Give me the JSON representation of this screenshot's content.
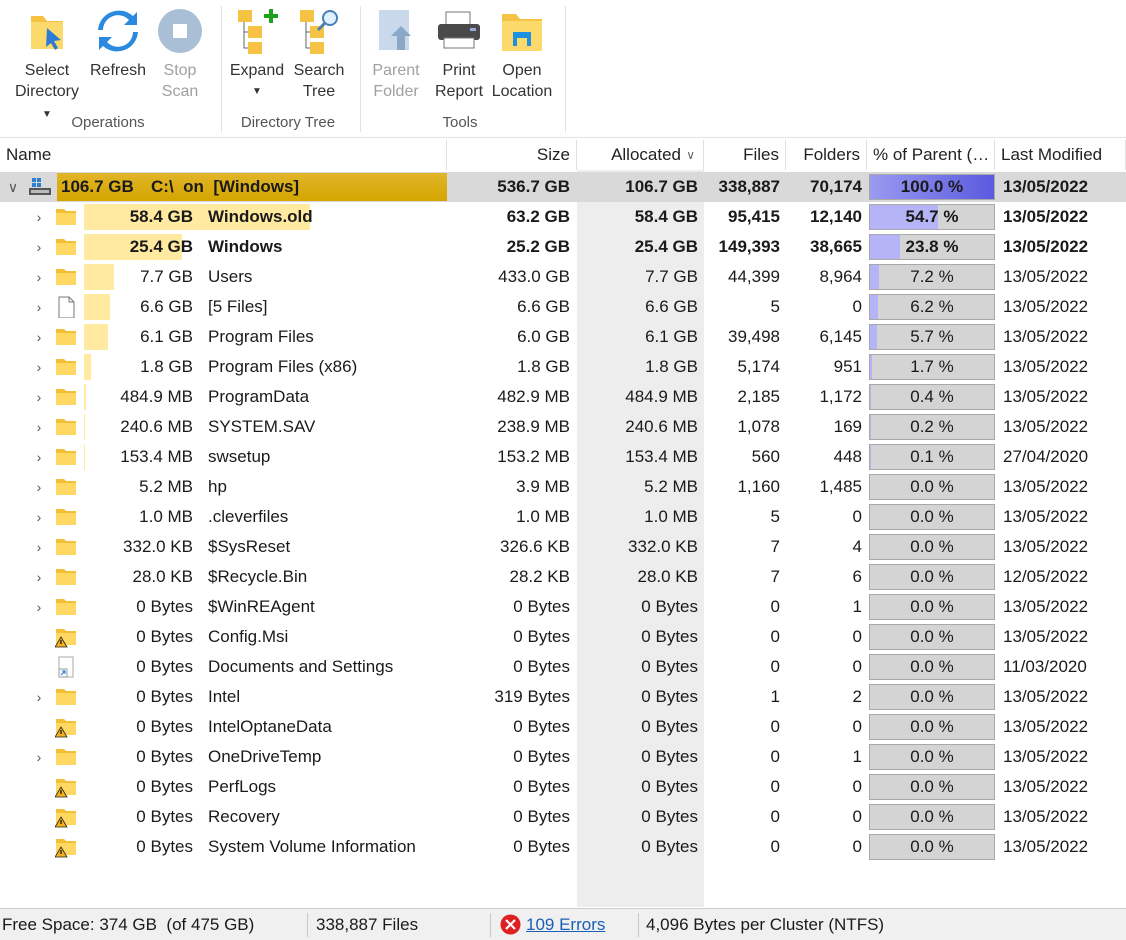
{
  "toolbar": {
    "groups": [
      {
        "title": "Operations",
        "buttons": [
          {
            "label": [
              "Select",
              "Directory"
            ]
          },
          {
            "label": [
              "Refresh"
            ]
          },
          {
            "label": [
              "Stop",
              "Scan"
            ]
          }
        ]
      },
      {
        "title": "Directory Tree",
        "buttons": [
          {
            "label": [
              "Expand"
            ]
          },
          {
            "label": [
              "Search",
              "Tree"
            ]
          }
        ]
      },
      {
        "title": "Tools",
        "buttons": [
          {
            "label": [
              "Parent",
              "Folder"
            ]
          },
          {
            "label": [
              "Print",
              "Report"
            ]
          },
          {
            "label": [
              "Open",
              "Location"
            ]
          }
        ]
      }
    ]
  },
  "table": {
    "columns": [
      "Name",
      "Size",
      "Allocated",
      "Files",
      "Folders",
      "% of Parent (…",
      "Last Modified"
    ],
    "root": {
      "size_label": "106.7 GB",
      "name": "C:\\  on  [Windows]",
      "size": "536.7 GB",
      "allocated": "106.7 GB",
      "files": "338,887",
      "folders": "70,174",
      "percent": 100,
      "percent_label": "100.0 %",
      "modified": "13/05/2022"
    },
    "rows": [
      {
        "size_label": "58.4 GB",
        "name": "Windows.old",
        "size": "63.2 GB",
        "allocated": "58.4 GB",
        "files": "95,415",
        "folders": "12,140",
        "percent": 54.7,
        "percent_label": "54.7 %",
        "modified": "13/05/2022",
        "icon": "folder",
        "expandable": true,
        "bold": true
      },
      {
        "size_label": "25.4 GB",
        "name": "Windows",
        "size": "25.2 GB",
        "allocated": "25.4 GB",
        "files": "149,393",
        "folders": "38,665",
        "percent": 23.8,
        "percent_label": "23.8 %",
        "modified": "13/05/2022",
        "icon": "folder",
        "expandable": true,
        "bold": true
      },
      {
        "size_label": "7.7 GB",
        "name": "Users",
        "size": "433.0 GB",
        "allocated": "7.7 GB",
        "files": "44,399",
        "folders": "8,964",
        "percent": 7.2,
        "percent_label": "7.2 %",
        "modified": "13/05/2022",
        "icon": "folder",
        "expandable": true,
        "bold": false
      },
      {
        "size_label": "6.6 GB",
        "name": "[5 Files]",
        "size": "6.6 GB",
        "allocated": "6.6 GB",
        "files": "5",
        "folders": "0",
        "percent": 6.2,
        "percent_label": "6.2 %",
        "modified": "13/05/2022",
        "icon": "file",
        "expandable": true,
        "bold": false
      },
      {
        "size_label": "6.1 GB",
        "name": "Program Files",
        "size": "6.0 GB",
        "allocated": "6.1 GB",
        "files": "39,498",
        "folders": "6,145",
        "percent": 5.7,
        "percent_label": "5.7 %",
        "modified": "13/05/2022",
        "icon": "folder",
        "expandable": true,
        "bold": false
      },
      {
        "size_label": "1.8 GB",
        "name": "Program Files (x86)",
        "size": "1.8 GB",
        "allocated": "1.8 GB",
        "files": "5,174",
        "folders": "951",
        "percent": 1.7,
        "percent_label": "1.7 %",
        "modified": "13/05/2022",
        "icon": "folder",
        "expandable": true,
        "bold": false
      },
      {
        "size_label": "484.9 MB",
        "name": "ProgramData",
        "size": "482.9 MB",
        "allocated": "484.9 MB",
        "files": "2,185",
        "folders": "1,172",
        "percent": 0.4,
        "percent_label": "0.4 %",
        "modified": "13/05/2022",
        "icon": "folder",
        "expandable": true,
        "bold": false
      },
      {
        "size_label": "240.6 MB",
        "name": "SYSTEM.SAV",
        "size": "238.9 MB",
        "allocated": "240.6 MB",
        "files": "1,078",
        "folders": "169",
        "percent": 0.2,
        "percent_label": "0.2 %",
        "modified": "13/05/2022",
        "icon": "folder",
        "expandable": true,
        "bold": false
      },
      {
        "size_label": "153.4 MB",
        "name": "swsetup",
        "size": "153.2 MB",
        "allocated": "153.4 MB",
        "files": "560",
        "folders": "448",
        "percent": 0.1,
        "percent_label": "0.1 %",
        "modified": "27/04/2020",
        "icon": "folder",
        "expandable": true,
        "bold": false
      },
      {
        "size_label": "5.2 MB",
        "name": "hp",
        "size": "3.9 MB",
        "allocated": "5.2 MB",
        "files": "1,160",
        "folders": "1,485",
        "percent": 0.0,
        "percent_label": "0.0 %",
        "modified": "13/05/2022",
        "icon": "folder",
        "expandable": true,
        "bold": false
      },
      {
        "size_label": "1.0 MB",
        "name": ".cleverfiles",
        "size": "1.0 MB",
        "allocated": "1.0 MB",
        "files": "5",
        "folders": "0",
        "percent": 0.0,
        "percent_label": "0.0 %",
        "modified": "13/05/2022",
        "icon": "folder",
        "expandable": true,
        "bold": false
      },
      {
        "size_label": "332.0 KB",
        "name": "$SysReset",
        "size": "326.6 KB",
        "allocated": "332.0 KB",
        "files": "7",
        "folders": "4",
        "percent": 0.0,
        "percent_label": "0.0 %",
        "modified": "13/05/2022",
        "icon": "folder",
        "expandable": true,
        "bold": false
      },
      {
        "size_label": "28.0 KB",
        "name": "$Recycle.Bin",
        "size": "28.2 KB",
        "allocated": "28.0 KB",
        "files": "7",
        "folders": "6",
        "percent": 0.0,
        "percent_label": "0.0 %",
        "modified": "12/05/2022",
        "icon": "folder",
        "expandable": true,
        "bold": false
      },
      {
        "size_label": "0 Bytes",
        "name": "$WinREAgent",
        "size": "0 Bytes",
        "allocated": "0 Bytes",
        "files": "0",
        "folders": "1",
        "percent": 0.0,
        "percent_label": "0.0 %",
        "modified": "13/05/2022",
        "icon": "folder",
        "expandable": true,
        "bold": false
      },
      {
        "size_label": "0 Bytes",
        "name": "Config.Msi",
        "size": "0 Bytes",
        "allocated": "0 Bytes",
        "files": "0",
        "folders": "0",
        "percent": 0.0,
        "percent_label": "0.0 %",
        "modified": "13/05/2022",
        "icon": "warning",
        "expandable": false,
        "bold": false
      },
      {
        "size_label": "0 Bytes",
        "name": "Documents and Settings",
        "size": "0 Bytes",
        "allocated": "0 Bytes",
        "files": "0",
        "folders": "0",
        "percent": 0.0,
        "percent_label": "0.0 %",
        "modified": "11/03/2020",
        "icon": "shortcut",
        "expandable": false,
        "bold": false
      },
      {
        "size_label": "0 Bytes",
        "name": "Intel",
        "size": "319 Bytes",
        "allocated": "0 Bytes",
        "files": "1",
        "folders": "2",
        "percent": 0.0,
        "percent_label": "0.0 %",
        "modified": "13/05/2022",
        "icon": "folder",
        "expandable": true,
        "bold": false
      },
      {
        "size_label": "0 Bytes",
        "name": "IntelOptaneData",
        "size": "0 Bytes",
        "allocated": "0 Bytes",
        "files": "0",
        "folders": "0",
        "percent": 0.0,
        "percent_label": "0.0 %",
        "modified": "13/05/2022",
        "icon": "warning",
        "expandable": false,
        "bold": false
      },
      {
        "size_label": "0 Bytes",
        "name": "OneDriveTemp",
        "size": "0 Bytes",
        "allocated": "0 Bytes",
        "files": "0",
        "folders": "1",
        "percent": 0.0,
        "percent_label": "0.0 %",
        "modified": "13/05/2022",
        "icon": "folder",
        "expandable": true,
        "bold": false
      },
      {
        "size_label": "0 Bytes",
        "name": "PerfLogs",
        "size": "0 Bytes",
        "allocated": "0 Bytes",
        "files": "0",
        "folders": "0",
        "percent": 0.0,
        "percent_label": "0.0 %",
        "modified": "13/05/2022",
        "icon": "warning",
        "expandable": false,
        "bold": false
      },
      {
        "size_label": "0 Bytes",
        "name": "Recovery",
        "size": "0 Bytes",
        "allocated": "0 Bytes",
        "files": "0",
        "folders": "0",
        "percent": 0.0,
        "percent_label": "0.0 %",
        "modified": "13/05/2022",
        "icon": "warning",
        "expandable": false,
        "bold": false
      },
      {
        "size_label": "0 Bytes",
        "name": "System Volume Information",
        "size": "0 Bytes",
        "allocated": "0 Bytes",
        "files": "0",
        "folders": "0",
        "percent": 0.0,
        "percent_label": "0.0 %",
        "modified": "13/05/2022",
        "icon": "warning",
        "expandable": false,
        "bold": false
      }
    ]
  },
  "status": {
    "free_space": "Free Space: 374 GB  (of 475 GB)",
    "files": "338,887 Files",
    "errors": "109 Errors",
    "cluster": "4,096 Bytes per Cluster (NTFS)"
  }
}
